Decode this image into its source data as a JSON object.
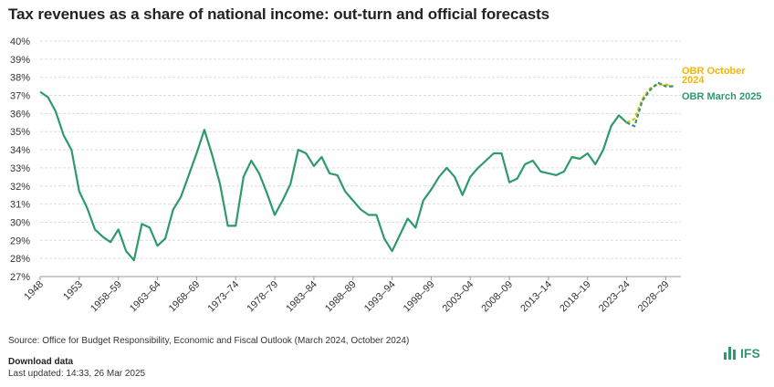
{
  "title": "Tax revenues as a share of national income: out-turn and official forecasts",
  "source": "Source: Office for Budget Responsibility, Economic and Fiscal Outlook (March 2024, October 2024)",
  "download_label": "Download data",
  "updated": "Last updated: 14:33, 26 Mar 2025",
  "logo_text": "IFS",
  "colors": {
    "outturn": "#2e9a6b",
    "obr_march_2025": "#2e9a6b",
    "obr_october_2024": "#f2b705",
    "grid": "#dddddd"
  },
  "chart_data": {
    "type": "line",
    "title": "Tax revenues as a share of national income: out-turn and official forecasts",
    "ylim": [
      27,
      40
    ],
    "y_ticks": [
      "27%",
      "28%",
      "29%",
      "30%",
      "31%",
      "32%",
      "33%",
      "34%",
      "35%",
      "36%",
      "37%",
      "38%",
      "39%",
      "40%"
    ],
    "x_ticks": [
      "1948",
      "1953",
      "1958–59",
      "1963–64",
      "1968–69",
      "1973–74",
      "1978–79",
      "1983–84",
      "1988–89",
      "1993–94",
      "1998–99",
      "2003–04",
      "2008–09",
      "2013–14",
      "2018–19",
      "2023–24",
      "2028–29"
    ],
    "grid": true,
    "series": [
      {
        "name": "",
        "style": "solid",
        "color": "#2e9a6b",
        "values": [
          37.2,
          36.9,
          36.1,
          34.8,
          34.0,
          31.7,
          30.8,
          29.6,
          29.2,
          28.9,
          29.6,
          28.4,
          27.9,
          29.9,
          29.7,
          28.7,
          29.1,
          30.7,
          31.4,
          32.6,
          33.8,
          35.1,
          33.7,
          32.1,
          29.8,
          29.8,
          32.5,
          33.4,
          32.7,
          31.6,
          30.4,
          31.2,
          32.1,
          34.0,
          33.8,
          33.1,
          33.6,
          32.7,
          32.6,
          31.7,
          31.2,
          30.7,
          30.4,
          30.4,
          29.1,
          28.4,
          29.3,
          30.2,
          29.7,
          31.2,
          31.8,
          32.5,
          33.0,
          32.5,
          31.5,
          32.5,
          33.0,
          33.4,
          33.8,
          33.8,
          32.2,
          32.4,
          33.2,
          33.4,
          32.8,
          32.7,
          32.6,
          32.8,
          33.6,
          33.5,
          33.8,
          33.2,
          34.0,
          35.3,
          35.9,
          35.5
        ]
      },
      {
        "name": "OBR October 2024",
        "style": "dashed",
        "color": "#f2b705",
        "start_index": 75,
        "values": [
          35.5,
          35.7,
          36.8,
          37.4,
          37.6,
          37.6,
          37.5
        ]
      },
      {
        "name": "OBR March 2025",
        "style": "dashed",
        "color": "#2e9a6b",
        "start_index": 75,
        "values": [
          35.5,
          35.3,
          36.7,
          37.3,
          37.7,
          37.5,
          37.5
        ]
      }
    ]
  }
}
